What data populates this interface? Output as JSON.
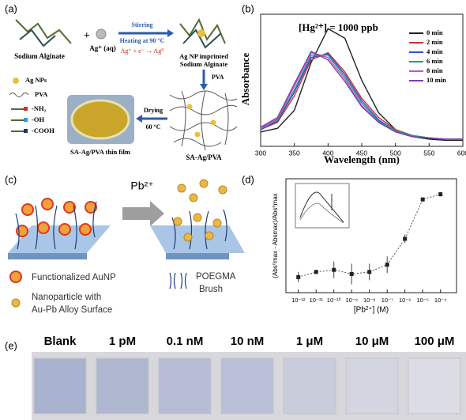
{
  "panel_a": {
    "label": "(a)",
    "sodium_alginate": "Sodium Alginate",
    "ag_ion": "Ag⁺ (aq)",
    "stirring": "Stirring",
    "heating": "Heating at 90 °C",
    "reaction": "Ag⁺ + e⁻ → Ag⁰",
    "imprinted_1": "Ag NP imprinted",
    "imprinted_2": "Sodium Alginate",
    "pva_arrow": "PVA",
    "legend_agnp": "Ag NPs",
    "legend_pva": "PVA",
    "legend_nh2": "-NH₂",
    "legend_oh": "-OH",
    "legend_cooh": "-COOH",
    "drying": "Drying",
    "drying_temp": "60 °C",
    "film": "SA-Ag/PVA thin film",
    "composite": "SA-Ag/PVA"
  },
  "chart_data": [
    {
      "type": "line",
      "label": "(b)",
      "annotation": "[Hg²⁺] = 1000 ppb",
      "x_label": "Wavelength (nm)",
      "y_label": "Absorbance",
      "x": [
        300,
        325,
        350,
        375,
        400,
        425,
        450,
        475,
        500,
        525,
        550,
        575,
        600
      ],
      "xlim": [
        300,
        600
      ],
      "xticks": [
        300,
        350,
        400,
        450,
        500,
        550,
        600
      ],
      "ylim": [
        0,
        1.1
      ],
      "series": [
        {
          "name": "0 min",
          "color": "#222222",
          "values": [
            0.12,
            0.15,
            0.3,
            0.7,
            0.98,
            0.9,
            0.55,
            0.28,
            0.14,
            0.08,
            0.06,
            0.05,
            0.05
          ]
        },
        {
          "name": "2 min",
          "color": "#d62f2f",
          "values": [
            0.14,
            0.2,
            0.42,
            0.72,
            0.78,
            0.62,
            0.4,
            0.24,
            0.14,
            0.09,
            0.07,
            0.06,
            0.06
          ]
        },
        {
          "name": "4 min",
          "color": "#2d4fd0",
          "values": [
            0.14,
            0.21,
            0.45,
            0.74,
            0.77,
            0.6,
            0.38,
            0.22,
            0.13,
            0.09,
            0.07,
            0.06,
            0.06
          ]
        },
        {
          "name": "6 min",
          "color": "#1f9a8a",
          "values": [
            0.15,
            0.22,
            0.47,
            0.76,
            0.76,
            0.58,
            0.36,
            0.21,
            0.13,
            0.09,
            0.07,
            0.06,
            0.06
          ]
        },
        {
          "name": "8 min",
          "color": "#d04fc0",
          "values": [
            0.15,
            0.23,
            0.5,
            0.78,
            0.74,
            0.56,
            0.34,
            0.2,
            0.12,
            0.08,
            0.07,
            0.06,
            0.06
          ]
        },
        {
          "name": "10 min",
          "color": "#7a3fb0",
          "values": [
            0.16,
            0.24,
            0.52,
            0.79,
            0.72,
            0.54,
            0.33,
            0.2,
            0.12,
            0.08,
            0.07,
            0.06,
            0.06
          ]
        }
      ]
    },
    {
      "type": "scatter",
      "label": "(d)",
      "x_label": "[Pb²⁺] (M)",
      "y_label": "(Abs⁰max - Absmax)/Abs⁰max",
      "log_x": true,
      "color": "#222222",
      "x": [
        1e-12,
        1e-11,
        1e-10,
        1e-09,
        1e-08,
        1e-07,
        1e-06,
        1e-05,
        0.0001
      ],
      "values": [
        0.15,
        0.2,
        0.22,
        0.18,
        0.2,
        0.27,
        0.52,
        0.9,
        0.95
      ],
      "errors": [
        0.05,
        0.02,
        0.08,
        0.1,
        0.08,
        0.08,
        0.04,
        0.02,
        0.02
      ],
      "xlim": [
        2e-13,
        0.0008
      ],
      "ylim": [
        0,
        1.1
      ],
      "xticks": [
        {
          "value": 1e-12,
          "label": "10⁻¹²"
        },
        {
          "value": 1e-11,
          "label": "10⁻¹¹"
        },
        {
          "value": 1e-10,
          "label": "10⁻¹⁰"
        },
        {
          "value": 1e-09,
          "label": "10⁻⁹"
        },
        {
          "value": 1e-08,
          "label": "10⁻⁸"
        },
        {
          "value": 1e-07,
          "label": "10⁻⁷"
        },
        {
          "value": 1e-06,
          "label": "10⁻⁶"
        },
        {
          "value": 1e-05,
          "label": "10⁻⁵"
        },
        {
          "value": 0.0001,
          "label": "10⁻⁴"
        }
      ]
    }
  ],
  "panel_c": {
    "label": "(c)",
    "ion": "Pb²⁺",
    "legend_1": "Functionalized AuNP",
    "legend_2a": "Nanoparticle with",
    "legend_2b": "Au-Pb Alloy Surface",
    "legend_3a": "POEGMA",
    "legend_3b": "Brush"
  },
  "panel_e": {
    "label": "(e)",
    "samples": [
      "Blank",
      "1 pM",
      "0.1 nM",
      "10 nM",
      "1 μM",
      "10 μM",
      "100 μM"
    ],
    "colors": [
      "#a9b3cf",
      "#aeb6d0",
      "#b5bcd4",
      "#b9bfd6",
      "#c8ccdb",
      "#d3d5e0",
      "#dcdde4"
    ]
  }
}
